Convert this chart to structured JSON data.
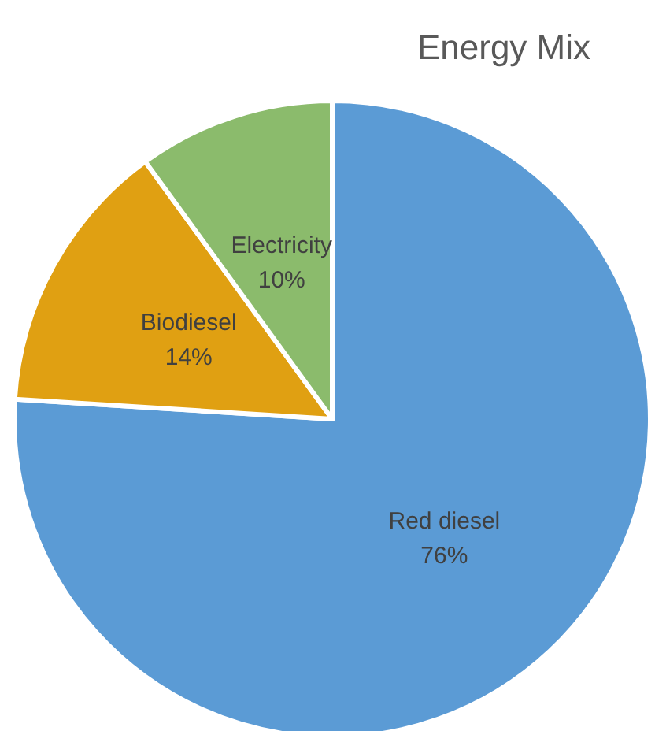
{
  "chart_data": {
    "type": "pie",
    "title": "Energy Mix",
    "categories": [
      "Red diesel",
      "Biodiesel",
      "Electricity"
    ],
    "values": [
      76,
      14,
      10
    ],
    "value_labels": [
      "76%",
      "14%",
      "10%"
    ],
    "colors": [
      "#5b9bd5",
      "#e0a012",
      "#8bbb6c"
    ],
    "legend": false
  }
}
